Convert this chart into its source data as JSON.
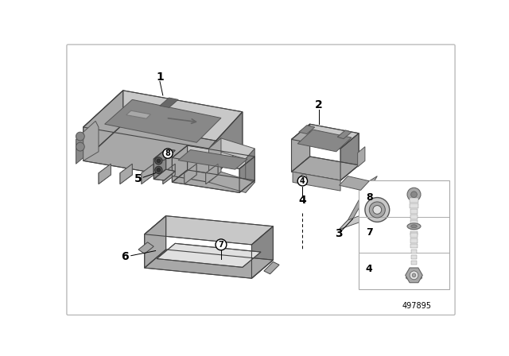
{
  "background_color": "#ffffff",
  "border_color": "#cccccc",
  "part_number": "497895",
  "gray_light": "#c8c8c8",
  "gray_mid": "#a8a8a8",
  "gray_dark": "#888888",
  "gray_vdark": "#686868",
  "gray_vlight": "#e0e0e0",
  "label_fs": 9,
  "label_bold": true
}
